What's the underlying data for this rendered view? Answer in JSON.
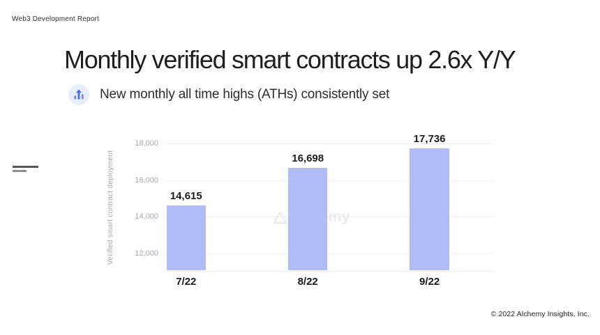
{
  "page": {
    "report_label": "Web3 Development Report",
    "title": "Monthly verified smart contracts up 2.6x Y/Y",
    "subtitle": "New monthly all time highs (ATHs) consistently set",
    "watermark_text": "alchemy",
    "footer": "© 2022 Alchemy Insights, Inc."
  },
  "colors": {
    "bar_fill": "#b0bcf6",
    "gridline": "#f0f0f1",
    "tick_label": "#a8a8a8",
    "axis_title": "#a3a3a3",
    "value_label": "#1c1c1c",
    "category_label": "#191919",
    "title_text": "#1e1e1e",
    "subtitle_text": "#2d2d2d",
    "icon_circle_bg": "#e7effb",
    "icon_arrow_blue": "#4170e4",
    "icon_bars_purple": "#7e86ef",
    "watermark_gray": "#ebebeb"
  },
  "chart_data": {
    "type": "bar",
    "title": "Monthly verified smart contracts up 2.6x Y/Y",
    "categories": [
      "7/22",
      "8/22",
      "9/22"
    ],
    "values": [
      14615,
      16698,
      17736
    ],
    "value_labels": [
      "14,615",
      "16,698",
      "17,736"
    ],
    "xlabel": "",
    "ylabel": "Verified smart contract deployment",
    "yticks": [
      12000,
      14000,
      16000,
      18000
    ],
    "ytick_labels": [
      "12,000",
      "14,000",
      "16,000",
      "18,000"
    ],
    "ylim": [
      11050,
      18800
    ],
    "grid": true,
    "legend": false,
    "bar_color": "#b0bcf6",
    "watermark": "alchemy"
  }
}
